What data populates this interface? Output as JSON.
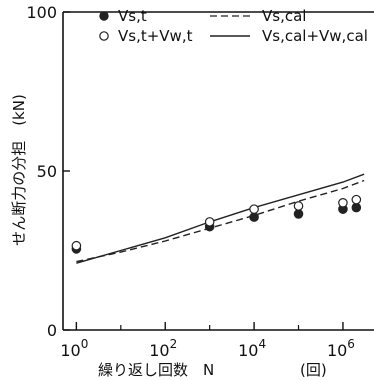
{
  "chart_data": {
    "type": "scatter",
    "title": "",
    "xlabel": "繰り返し回数　N",
    "xunit": "(回)",
    "ylabel": "せん断力の分担　(kN)",
    "xscale": "log",
    "xlim": [
      0.5,
      5000000
    ],
    "ylim": [
      0,
      100
    ],
    "grid": false,
    "legend_position": "top-left",
    "x_ticks": [
      {
        "value": 1,
        "base": "10",
        "exp": "0"
      },
      {
        "value": 100,
        "base": "10",
        "exp": "2"
      },
      {
        "value": 10000,
        "base": "10",
        "exp": "4"
      },
      {
        "value": 1000000,
        "base": "10",
        "exp": "6"
      }
    ],
    "y_ticks": [
      {
        "value": 0,
        "label": "0"
      },
      {
        "value": 50,
        "label": "50"
      },
      {
        "value": 100,
        "label": "100"
      }
    ],
    "series": [
      {
        "name": "Vs,t",
        "kind": "marker-filled",
        "points": [
          [
            1,
            25.5
          ],
          [
            1000,
            32.5
          ],
          [
            10000,
            35.5
          ],
          [
            100000,
            36.5
          ],
          [
            1000000,
            38
          ],
          [
            2000000,
            38.5
          ]
        ]
      },
      {
        "name": "Vs,t+Vw,t",
        "kind": "marker-open",
        "points": [
          [
            1,
            26.5
          ],
          [
            1000,
            34
          ],
          [
            10000,
            38
          ],
          [
            100000,
            39
          ],
          [
            1000000,
            40
          ],
          [
            2000000,
            41
          ]
        ]
      },
      {
        "name": "Vs,cal",
        "kind": "line-dashed",
        "points": [
          [
            1,
            21.5
          ],
          [
            10,
            24.5
          ],
          [
            100,
            28
          ],
          [
            1000,
            32
          ],
          [
            10000,
            36
          ],
          [
            100000,
            40.5
          ],
          [
            1000000,
            44.5
          ],
          [
            3000000,
            47
          ]
        ]
      },
      {
        "name": "Vs,cal+Vw,cal",
        "kind": "line-solid",
        "points": [
          [
            1,
            21
          ],
          [
            10,
            25
          ],
          [
            100,
            29
          ],
          [
            1000,
            34
          ],
          [
            10000,
            38.5
          ],
          [
            100000,
            42.5
          ],
          [
            1000000,
            46.5
          ],
          [
            3000000,
            49
          ]
        ]
      }
    ]
  }
}
